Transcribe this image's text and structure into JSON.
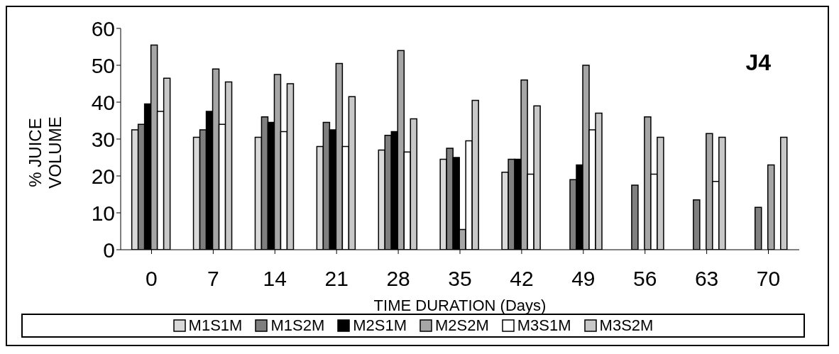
{
  "chart_data": {
    "type": "bar",
    "xlabel": "TIME DURATION (Days)",
    "ylabel": "% JUICE VOLUME",
    "annotations": [
      "J4"
    ],
    "categories": [
      "0",
      "7",
      "14",
      "21",
      "28",
      "35",
      "42",
      "49",
      "56",
      "63",
      "70"
    ],
    "series": [
      {
        "name": "M1S1M",
        "color": "#d9d9d9",
        "values": [
          32.5,
          30.5,
          30.5,
          28,
          27,
          24.5,
          21,
          null,
          null,
          null,
          null
        ]
      },
      {
        "name": "M1S2M",
        "color": "#7f7f7f",
        "values": [
          34,
          32.5,
          36,
          34.5,
          31,
          27.5,
          24.5,
          19,
          17.5,
          13.5,
          11.5
        ]
      },
      {
        "name": "M2S1M",
        "color": "#000000",
        "values": [
          39.5,
          37.5,
          34.5,
          32.5,
          32,
          25,
          24.5,
          23,
          null,
          null,
          null
        ]
      },
      {
        "name": "M2S2M",
        "color": "#a6a6a6",
        "values": [
          55.5,
          49,
          47.5,
          50.5,
          54,
          5.5,
          46,
          50,
          36,
          31.5,
          23
        ]
      },
      {
        "name": "M3S1M",
        "color": "#ffffff",
        "values": [
          37.5,
          34,
          32,
          28,
          26.5,
          29.5,
          20.5,
          32.5,
          20.5,
          18.5,
          null
        ]
      },
      {
        "name": "M3S2M",
        "color": "#c8c8c8",
        "values": [
          46.5,
          45.5,
          45,
          41.5,
          35.5,
          40.5,
          39,
          37,
          30.5,
          30.5,
          30.5
        ]
      }
    ],
    "ylim": [
      0,
      60
    ],
    "yticks": [
      0,
      10,
      20,
      30,
      40,
      50,
      60
    ],
    "grid": false,
    "legend": "bottom"
  }
}
